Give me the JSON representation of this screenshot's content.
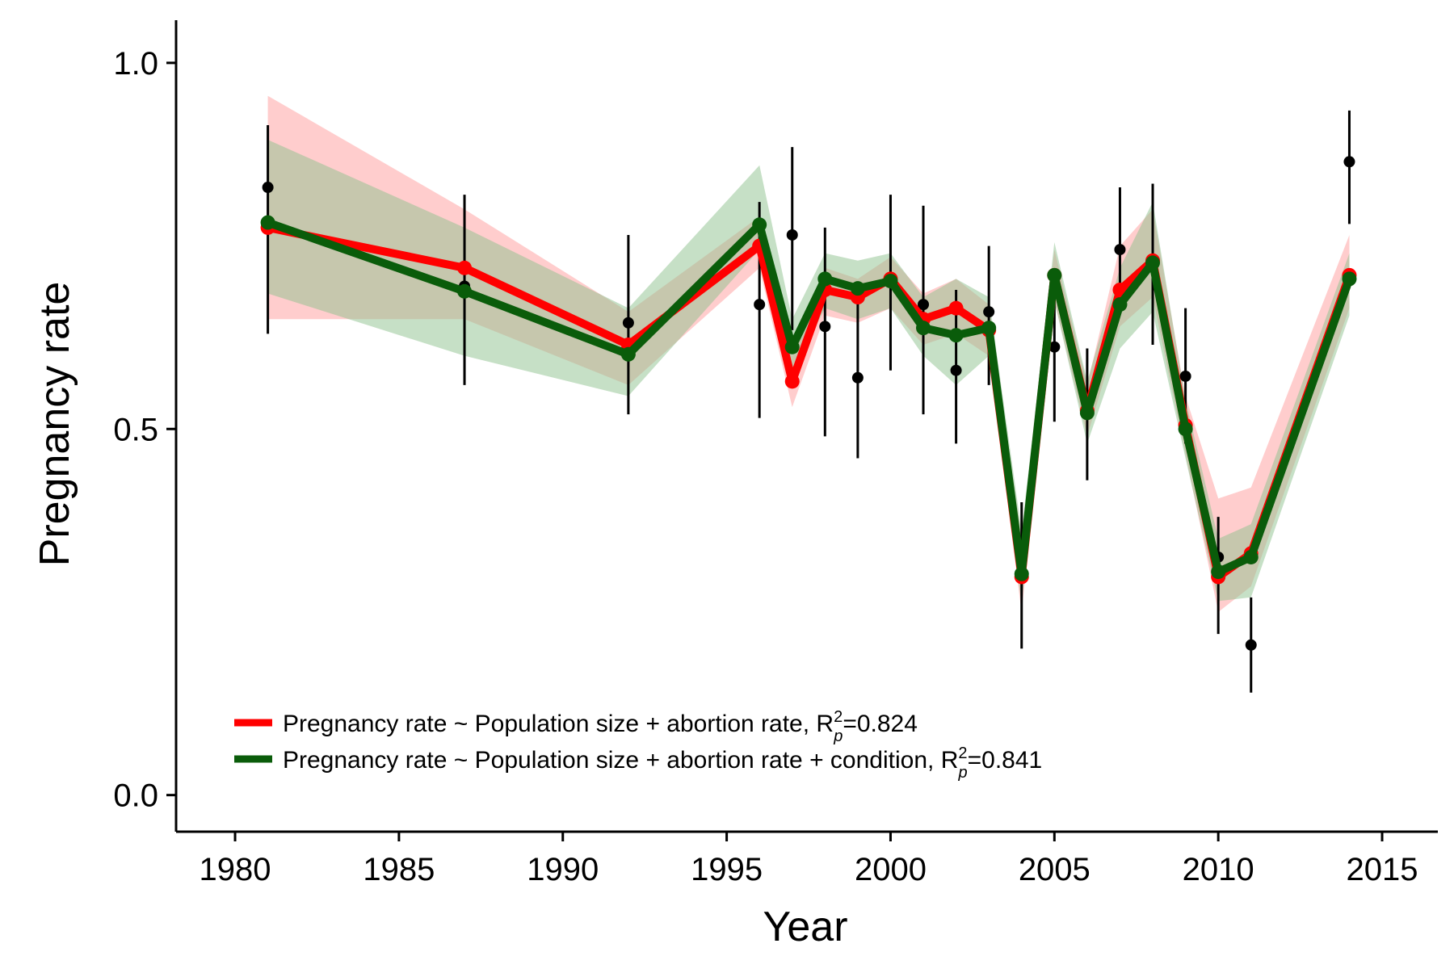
{
  "chart_data": {
    "type": "line",
    "xlabel": "Year",
    "ylabel": "Pregnancy rate",
    "xlim": [
      1978.2,
      2016.7
    ],
    "ylim": [
      -0.05,
      1.055
    ],
    "xticks": [
      "1980",
      "1985",
      "1990",
      "1995",
      "2000",
      "2005",
      "2010",
      "2015"
    ],
    "yticks": [
      "0.0",
      "0.5",
      "1.0"
    ],
    "grid": false,
    "legend_position": "bottom-left",
    "observed": [
      {
        "x": 1981,
        "y": 0.83,
        "lo": 0.63,
        "hi": 0.915
      },
      {
        "x": 1987,
        "y": 0.695,
        "lo": 0.56,
        "hi": 0.82
      },
      {
        "x": 1992,
        "y": 0.645,
        "lo": 0.52,
        "hi": 0.765
      },
      {
        "x": 1996,
        "y": 0.67,
        "lo": 0.515,
        "hi": 0.81
      },
      {
        "x": 1997,
        "y": 0.765,
        "lo": 0.635,
        "hi": 0.885
      },
      {
        "x": 1998,
        "y": 0.64,
        "lo": 0.49,
        "hi": 0.775
      },
      {
        "x": 1999,
        "y": 0.57,
        "lo": 0.46,
        "hi": 0.7
      },
      {
        "x": 2000,
        "y": 0.705,
        "lo": 0.58,
        "hi": 0.82
      },
      {
        "x": 2001,
        "y": 0.67,
        "lo": 0.52,
        "hi": 0.805
      },
      {
        "x": 2002,
        "y": 0.58,
        "lo": 0.48,
        "hi": 0.69
      },
      {
        "x": 2003,
        "y": 0.66,
        "lo": 0.56,
        "hi": 0.75
      },
      {
        "x": 2004,
        "y": 0.3,
        "lo": 0.2,
        "hi": 0.4
      },
      {
        "x": 2005,
        "y": 0.612,
        "lo": 0.51,
        "hi": 0.715
      },
      {
        "x": 2006,
        "y": 0.525,
        "lo": 0.43,
        "hi": 0.61
      },
      {
        "x": 2007,
        "y": 0.745,
        "lo": 0.66,
        "hi": 0.83
      },
      {
        "x": 2008,
        "y": 0.725,
        "lo": 0.615,
        "hi": 0.835
      },
      {
        "x": 2009,
        "y": 0.572,
        "lo": 0.48,
        "hi": 0.665
      },
      {
        "x": 2010,
        "y": 0.325,
        "lo": 0.22,
        "hi": 0.38
      },
      {
        "x": 2011,
        "y": 0.205,
        "lo": 0.14,
        "hi": 0.27
      },
      {
        "x": 2014,
        "y": 0.865,
        "lo": 0.78,
        "hi": 0.935
      }
    ],
    "series": [
      {
        "name": "Pregnancy rate ~ Population size + abortion rate, R",
        "r2_label": "=0.824",
        "color": "#ff0000",
        "band_color": "#ff9c9c",
        "x": [
          1981,
          1987,
          1992,
          1996,
          1997,
          1998,
          1999,
          2000,
          2001,
          2002,
          2003,
          2004,
          2005,
          2006,
          2007,
          2008,
          2009,
          2010,
          2011,
          2014
        ],
        "y": [
          0.775,
          0.72,
          0.615,
          0.75,
          0.565,
          0.69,
          0.68,
          0.705,
          0.65,
          0.665,
          0.635,
          0.298,
          0.71,
          0.525,
          0.69,
          0.73,
          0.505,
          0.298,
          0.33,
          0.71
        ],
        "lo": [
          0.65,
          0.65,
          0.56,
          0.72,
          0.53,
          0.655,
          0.645,
          0.665,
          0.615,
          0.63,
          0.6,
          0.25,
          0.675,
          0.49,
          0.64,
          0.68,
          0.465,
          0.25,
          0.285,
          0.665
        ],
        "hi": [
          0.955,
          0.8,
          0.66,
          0.79,
          0.6,
          0.72,
          0.705,
          0.735,
          0.685,
          0.705,
          0.67,
          0.35,
          0.745,
          0.56,
          0.75,
          0.8,
          0.545,
          0.405,
          0.42,
          0.765
        ]
      },
      {
        "name": "Pregnancy rate ~ Population size + abortion rate + condition, R",
        "r2_label": "=0.841",
        "color": "#0a5c0a",
        "band_color": "#8dc28d",
        "x": [
          1981,
          1987,
          1992,
          1996,
          1997,
          1998,
          1999,
          2000,
          2001,
          2002,
          2003,
          2004,
          2005,
          2006,
          2007,
          2008,
          2009,
          2010,
          2011,
          2014
        ],
        "y": [
          0.782,
          0.688,
          0.602,
          0.779,
          0.612,
          0.705,
          0.692,
          0.702,
          0.638,
          0.628,
          0.638,
          0.302,
          0.71,
          0.522,
          0.67,
          0.727,
          0.5,
          0.305,
          0.325,
          0.705
        ],
        "lo": [
          0.685,
          0.6,
          0.545,
          0.745,
          0.575,
          0.665,
          0.65,
          0.665,
          0.6,
          0.56,
          0.6,
          0.26,
          0.675,
          0.48,
          0.61,
          0.66,
          0.46,
          0.265,
          0.27,
          0.655
        ],
        "hi": [
          0.895,
          0.775,
          0.665,
          0.86,
          0.65,
          0.74,
          0.73,
          0.74,
          0.68,
          0.705,
          0.68,
          0.36,
          0.755,
          0.565,
          0.72,
          0.81,
          0.54,
          0.35,
          0.37,
          0.74
        ]
      }
    ]
  }
}
